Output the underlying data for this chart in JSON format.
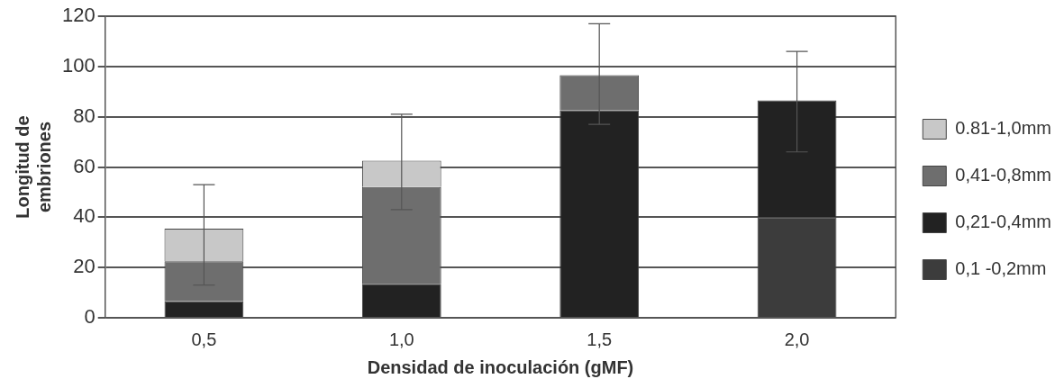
{
  "chart_data": {
    "type": "bar",
    "stacked": true,
    "xlabel": "Densidad de inoculación (gMF)",
    "ylabel": "Longitud de embriones",
    "categories": [
      "0,5",
      "1,0",
      "1,5",
      "2,0"
    ],
    "series": [
      {
        "name": "0,1 -0,2mm",
        "color": "#3c3c3c",
        "values": [
          0,
          0,
          0,
          40
        ]
      },
      {
        "name": "0,21-0,4mm",
        "color": "#222222",
        "values": [
          6.5,
          13.5,
          82.5,
          46.5
        ]
      },
      {
        "name": "0,41-0,8mm",
        "color": "#6e6e6e",
        "values": [
          16,
          38.5,
          14,
          0
        ]
      },
      {
        "name": "0.81-1,0mm",
        "color": "#c8c8c8",
        "values": [
          13,
          10.5,
          0,
          0
        ],
        "errors": [
          [
            13,
            53
          ],
          [
            43,
            81
          ],
          [
            77,
            117
          ],
          [
            66,
            106
          ]
        ]
      }
    ],
    "ylim": [
      0,
      120
    ],
    "yticks": [
      0,
      20,
      40,
      60,
      80,
      100,
      120
    ],
    "grid": "y",
    "legend": "right"
  }
}
